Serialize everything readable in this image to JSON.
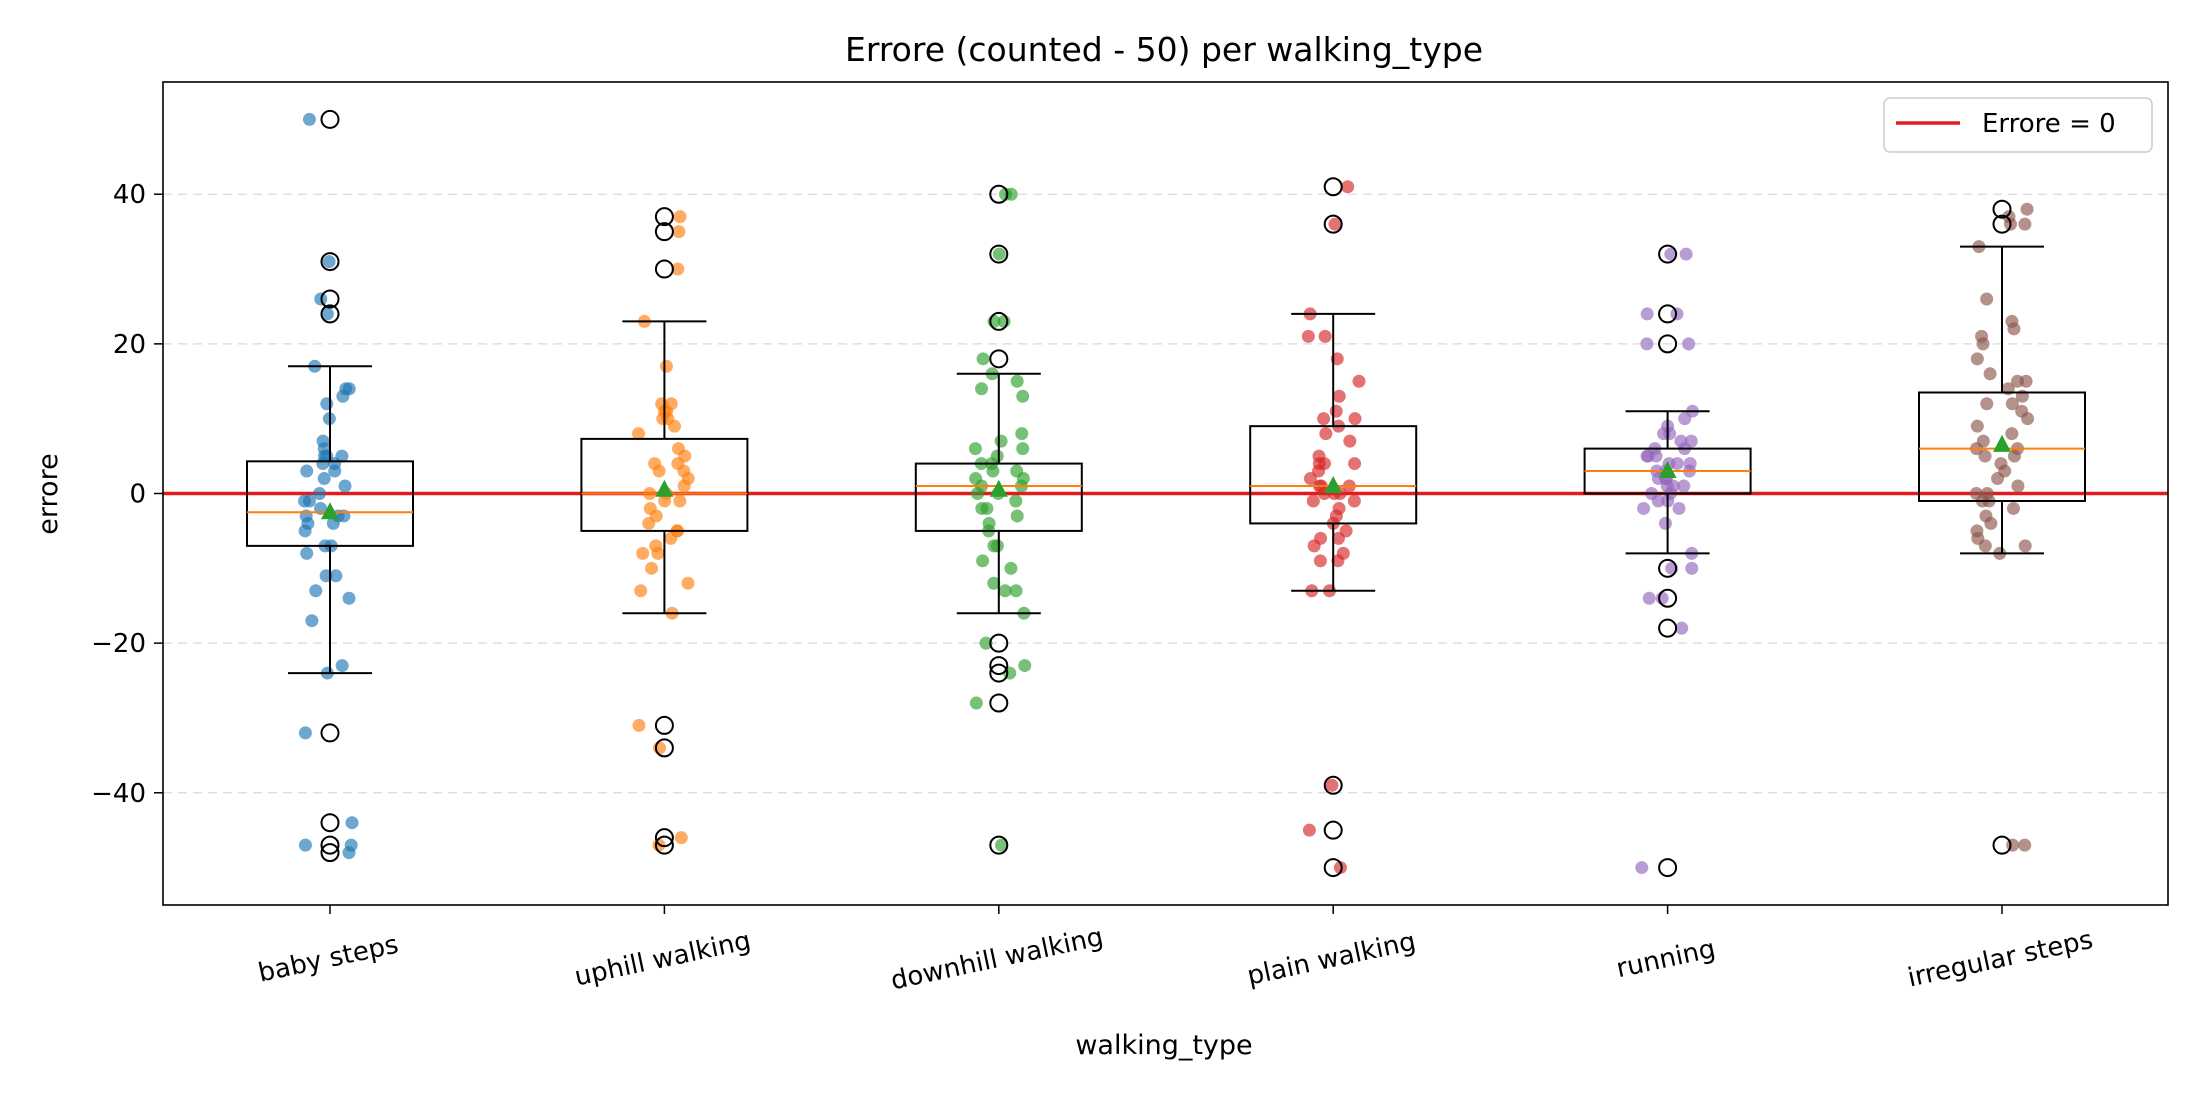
{
  "chart_data": {
    "type": "box",
    "title": "Errore (counted - 50) per walking_type",
    "xlabel": "walking_type",
    "ylabel": "errore",
    "ylim": [
      -55,
      55
    ],
    "yticks": [
      -40,
      -20,
      0,
      20,
      40
    ],
    "ytick_labels": [
      "−40",
      "−20",
      "0",
      "20",
      "40"
    ],
    "grid": "horizontal-dashed",
    "legend": {
      "position": "top-right",
      "entries": [
        {
          "label": "Errore = 0",
          "color": "#e41a1c"
        }
      ]
    },
    "reference_line": {
      "y": 0,
      "label": "Errore = 0",
      "color": "#e41a1c"
    },
    "categories": [
      "baby steps",
      "uphill walking",
      "downhill walking",
      "plain walking",
      "running",
      "irregular steps"
    ],
    "colors": [
      "#1f77b4",
      "#ff7f0e",
      "#2ca02c",
      "#d62728",
      "#9467bd",
      "#8c564b"
    ],
    "boxes": [
      {
        "category": "baby steps",
        "whisker_low": -24,
        "q1": -7,
        "median": -2.5,
        "q3": 4.3,
        "whisker_high": 17,
        "mean": -2.5,
        "outliers": [
          50,
          31,
          26,
          24,
          -32,
          -44,
          -47,
          -48
        ]
      },
      {
        "category": "uphill walking",
        "whisker_low": -16,
        "q1": -5,
        "median": 0,
        "q3": 7.3,
        "whisker_high": 23,
        "mean": 0.5,
        "outliers": [
          37,
          35,
          30,
          -31,
          -34,
          -46,
          -47
        ]
      },
      {
        "category": "downhill walking",
        "whisker_low": -16,
        "q1": -5,
        "median": 1,
        "q3": 4,
        "whisker_high": 16,
        "mean": 0.5,
        "outliers": [
          40,
          32,
          23,
          18,
          -20,
          -23,
          -24,
          -28,
          -47
        ]
      },
      {
        "category": "plain walking",
        "whisker_low": -13,
        "q1": -4,
        "median": 1,
        "q3": 9,
        "whisker_high": 24,
        "mean": 1,
        "outliers": [
          41,
          36,
          -39,
          -45,
          -50
        ]
      },
      {
        "category": "running",
        "whisker_low": -8,
        "q1": 0,
        "median": 3,
        "q3": 6,
        "whisker_high": 11,
        "mean": 3,
        "outliers": [
          32,
          24,
          20,
          -10,
          -14,
          -18,
          -50
        ]
      },
      {
        "category": "irregular steps",
        "whisker_low": -8,
        "q1": -1,
        "median": 6,
        "q3": 13.5,
        "whisker_high": 33,
        "mean": 6.5,
        "outliers": [
          38,
          36,
          -47
        ]
      }
    ],
    "points": [
      [
        50,
        31,
        26,
        24,
        17,
        14,
        14,
        13,
        12,
        10,
        7,
        6,
        5,
        5,
        5,
        4,
        4,
        3,
        3,
        2,
        1,
        0,
        -1,
        -1,
        -2,
        -3,
        -3,
        -3,
        -4,
        -4,
        -5,
        -7,
        -7,
        -8,
        -11,
        -11,
        -13,
        -14,
        -17,
        -23,
        -24,
        -32,
        -44,
        -47,
        -47,
        -48
      ],
      [
        37,
        35,
        30,
        23,
        17,
        12,
        12,
        11,
        11,
        10,
        10,
        9,
        8,
        6,
        5,
        4,
        4,
        3,
        3,
        2,
        1,
        0,
        0,
        -1,
        -1,
        -2,
        -3,
        -4,
        -5,
        -5,
        -6,
        -7,
        -8,
        -8,
        -10,
        -12,
        -13,
        -16,
        -31,
        -34,
        -46,
        -47
      ],
      [
        40,
        40,
        32,
        23,
        23,
        18,
        16,
        15,
        14,
        13,
        8,
        7,
        6,
        6,
        5,
        4,
        4,
        3,
        3,
        2,
        2,
        1,
        1,
        0,
        0,
        -1,
        -2,
        -2,
        -3,
        -4,
        -5,
        -7,
        -7,
        -9,
        -10,
        -12,
        -13,
        -13,
        -16,
        -20,
        -23,
        -24,
        -28,
        -47
      ],
      [
        41,
        36,
        24,
        21,
        21,
        18,
        15,
        13,
        11,
        10,
        10,
        9,
        8,
        7,
        5,
        4,
        4,
        4,
        3,
        2,
        1,
        1,
        1,
        0,
        0,
        0,
        -1,
        -1,
        -2,
        -3,
        -4,
        -5,
        -6,
        -6,
        -7,
        -8,
        -9,
        -9,
        -13,
        -13,
        -39,
        -45,
        -50
      ],
      [
        32,
        32,
        24,
        24,
        20,
        20,
        11,
        10,
        9,
        8,
        8,
        7,
        7,
        6,
        6,
        5,
        5,
        5,
        4,
        4,
        4,
        3,
        3,
        3,
        2,
        2,
        2,
        1,
        1,
        1,
        0,
        0,
        -1,
        -1,
        -2,
        -2,
        -4,
        -8,
        -10,
        -10,
        -14,
        -14,
        -18,
        -50
      ],
      [
        38,
        37,
        36,
        36,
        33,
        26,
        23,
        22,
        21,
        20,
        18,
        16,
        15,
        15,
        14,
        13,
        12,
        12,
        11,
        10,
        9,
        8,
        7,
        6,
        6,
        5,
        5,
        4,
        3,
        2,
        1,
        0,
        0,
        -1,
        -1,
        -2,
        -3,
        -4,
        -5,
        -6,
        -7,
        -7,
        -8,
        -47,
        -47
      ]
    ]
  }
}
